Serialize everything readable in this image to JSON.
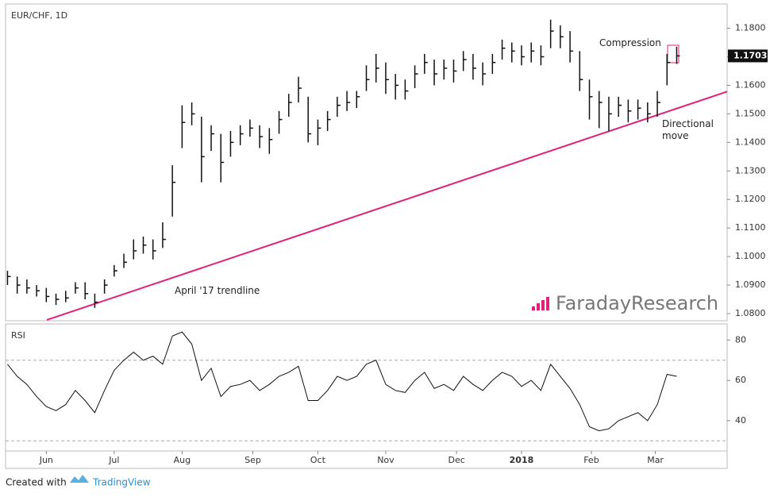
{
  "header": {
    "title": "EUR/CHF, 1D",
    "watermark": "FaradayResearch"
  },
  "chart_data": [
    {
      "type": "ohlc",
      "xlim": [
        -0.2,
        74.2
      ],
      "ylim": [
        1.0775,
        1.1885
      ],
      "close": [
        1.093,
        1.09,
        1.089,
        1.088,
        1.086,
        1.085,
        1.0855,
        1.089,
        1.087,
        1.084,
        1.09,
        1.095,
        1.098,
        1.102,
        1.104,
        1.102,
        1.106,
        1.126,
        1.147,
        1.15,
        1.135,
        1.143,
        1.133,
        1.14,
        1.143,
        1.145,
        1.142,
        1.141,
        1.148,
        1.154,
        1.159,
        1.143,
        1.145,
        1.148,
        1.153,
        1.154,
        1.156,
        1.162,
        1.166,
        1.162,
        1.16,
        1.158,
        1.164,
        1.168,
        1.164,
        1.166,
        1.165,
        1.169,
        1.166,
        1.164,
        1.168,
        1.173,
        1.172,
        1.17,
        1.172,
        1.17,
        1.179,
        1.177,
        1.172,
        1.162,
        1.156,
        1.154,
        1.15,
        1.153,
        1.151,
        1.152,
        1.15,
        1.154,
        1.168,
        1.1703
      ],
      "high": [
        1.095,
        1.093,
        1.092,
        1.09,
        1.089,
        1.087,
        1.088,
        1.091,
        1.091,
        1.087,
        1.092,
        1.097,
        1.101,
        1.106,
        1.107,
        1.106,
        1.112,
        1.132,
        1.153,
        1.154,
        1.149,
        1.146,
        1.143,
        1.144,
        1.146,
        1.148,
        1.146,
        1.145,
        1.151,
        1.157,
        1.163,
        1.156,
        1.148,
        1.151,
        1.156,
        1.158,
        1.158,
        1.167,
        1.171,
        1.168,
        1.164,
        1.162,
        1.167,
        1.171,
        1.169,
        1.169,
        1.169,
        1.172,
        1.171,
        1.168,
        1.171,
        1.176,
        1.175,
        1.174,
        1.175,
        1.174,
        1.183,
        1.181,
        1.179,
        1.172,
        1.162,
        1.158,
        1.156,
        1.156,
        1.155,
        1.155,
        1.154,
        1.158,
        1.171,
        1.1735
      ],
      "low": [
        1.09,
        1.087,
        1.087,
        1.086,
        1.084,
        1.083,
        1.084,
        1.087,
        1.085,
        1.082,
        1.087,
        1.093,
        1.096,
        1.099,
        1.101,
        1.099,
        1.103,
        1.114,
        1.138,
        1.146,
        1.126,
        1.137,
        1.126,
        1.135,
        1.139,
        1.142,
        1.138,
        1.136,
        1.143,
        1.149,
        1.154,
        1.14,
        1.139,
        1.144,
        1.149,
        1.151,
        1.152,
        1.158,
        1.161,
        1.157,
        1.155,
        1.155,
        1.159,
        1.164,
        1.16,
        1.162,
        1.161,
        1.165,
        1.162,
        1.16,
        1.164,
        1.169,
        1.168,
        1.167,
        1.168,
        1.167,
        1.173,
        1.173,
        1.168,
        1.158,
        1.148,
        1.145,
        1.144,
        1.149,
        1.147,
        1.148,
        1.147,
        1.149,
        1.16,
        1.1675
      ],
      "yticks": [
        {
          "value": 1.08,
          "label": "1.0800"
        },
        {
          "value": 1.09,
          "label": "1.0900"
        },
        {
          "value": 1.1,
          "label": "1.1000"
        },
        {
          "value": 1.11,
          "label": "1.1100"
        },
        {
          "value": 1.12,
          "label": "1.1200"
        },
        {
          "value": 1.13,
          "label": "1.1300"
        },
        {
          "value": 1.14,
          "label": "1.1400"
        },
        {
          "value": 1.15,
          "label": "1.1500"
        },
        {
          "value": 1.16,
          "label": "1.1600"
        },
        {
          "value": 1.17,
          "label": "1.1700"
        },
        {
          "value": 1.18,
          "label": "1.1800"
        }
      ],
      "last_price": 1.1703,
      "trendline": {
        "label": "April '17 trendline",
        "color": "#e0207a",
        "x": [
          4.06,
          74.2
        ],
        "y": [
          1.0778,
          1.1578
        ]
      },
      "annotations": [
        "Compression",
        "Directional move"
      ]
    },
    {
      "type": "line",
      "title": "RSI",
      "xlim": [
        -0.2,
        74.2
      ],
      "ylim": [
        25,
        88
      ],
      "values": [
        68,
        62,
        58,
        52,
        47,
        45,
        48,
        55,
        50,
        44,
        55,
        65,
        70,
        74,
        70,
        72,
        68,
        82,
        84,
        78,
        60,
        66,
        52,
        57,
        58,
        60,
        55,
        58,
        62,
        64,
        67,
        50,
        50,
        55,
        62,
        60,
        62,
        68,
        70,
        58,
        55,
        54,
        60,
        64,
        56,
        58,
        55,
        62,
        58,
        55,
        60,
        64,
        62,
        57,
        60,
        55,
        68,
        62,
        56,
        48,
        37,
        35,
        36,
        40,
        42,
        44,
        40,
        48,
        63,
        62
      ],
      "yticks": [
        40,
        60,
        80
      ],
      "levels": [
        30,
        70
      ],
      "xticks": [
        {
          "value": 4,
          "label": "Jun"
        },
        {
          "value": 11,
          "label": "Jul"
        },
        {
          "value": 18,
          "label": "Aug"
        },
        {
          "value": 25.3,
          "label": "Sep"
        },
        {
          "value": 32,
          "label": "Oct"
        },
        {
          "value": 39,
          "label": "Nov"
        },
        {
          "value": 46.3,
          "label": "Dec"
        },
        {
          "value": 53,
          "label": "2018"
        },
        {
          "value": 60.2,
          "label": "Feb"
        },
        {
          "value": 66.8,
          "label": "Mar"
        }
      ]
    }
  ],
  "footer": {
    "created": "Created with",
    "brand": "TradingView"
  }
}
